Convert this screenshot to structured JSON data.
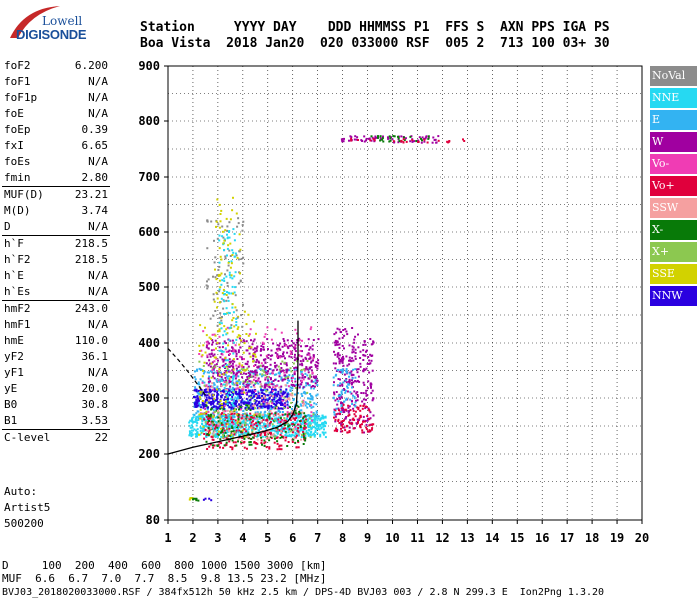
{
  "logo": {
    "brand": "Lowell",
    "product": "DIGISONDE"
  },
  "header": {
    "line1": "Station     YYYY DAY    DDD HHMMSS P1  FFS S  AXN PPS IGA PS",
    "line2": "Boa Vista  2018 Jan20  020 033000 RSF  005 2  713 100 03+ 30"
  },
  "params": [
    {
      "label": "foF2",
      "value": "6.200"
    },
    {
      "label": "foF1",
      "value": "N/A"
    },
    {
      "label": "foF1p",
      "value": "N/A"
    },
    {
      "label": "foE",
      "value": "N/A"
    },
    {
      "label": "foEp",
      "value": "0.39"
    },
    {
      "label": "fxI",
      "value": "6.65"
    },
    {
      "label": "foEs",
      "value": "N/A"
    },
    {
      "label": "fmin",
      "value": "2.80"
    },
    {
      "label": "MUF(D)",
      "value": "23.21",
      "sep": true
    },
    {
      "label": "M(D)",
      "value": "3.74"
    },
    {
      "label": "D",
      "value": "N/A"
    },
    {
      "label": "h`F",
      "value": "218.5",
      "sep": true
    },
    {
      "label": "h`F2",
      "value": "218.5"
    },
    {
      "label": "h`E",
      "value": "N/A"
    },
    {
      "label": "h`Es",
      "value": "N/A"
    },
    {
      "label": "hmF2",
      "value": "243.0",
      "sep": true
    },
    {
      "label": "hmF1",
      "value": "N/A"
    },
    {
      "label": "hmE",
      "value": "110.0"
    },
    {
      "label": "yF2",
      "value": "36.1"
    },
    {
      "label": "yF1",
      "value": "N/A"
    },
    {
      "label": "yE",
      "value": "20.0"
    },
    {
      "label": "B0",
      "value": "30.8"
    },
    {
      "label": "B1",
      "value": "3.53"
    },
    {
      "label": "C-level",
      "value": "22",
      "sep": true
    }
  ],
  "auto": {
    "line1": "Auto:",
    "line2": "Artist5",
    "line3": "500200"
  },
  "legend": [
    {
      "label": "NoVal",
      "color": "#8c8c8c"
    },
    {
      "label": "NNE",
      "color": "#26d9f2"
    },
    {
      "label": "E",
      "color": "#33b3f2"
    },
    {
      "label": "W",
      "color": "#a000a0"
    },
    {
      "label": "Vo-",
      "color": "#f03cb4"
    },
    {
      "label": "Vo+",
      "color": "#e0003c"
    },
    {
      "label": "SSW",
      "color": "#f5a0a0"
    },
    {
      "label": "X-",
      "color": "#087a08"
    },
    {
      "label": "X+",
      "color": "#8cc850"
    },
    {
      "label": "SSE",
      "color": "#d2d200"
    },
    {
      "label": "NNW",
      "color": "#2a00e0"
    }
  ],
  "footer": {
    "row1": "D     100  200  400  600  800 1000 1500 3000 [km]",
    "row2": "MUF  6.6  6.7  7.0  7.7  8.5  9.8 13.5 23.2 [MHz]",
    "row3": "BVJ03_2018020033000.RSF / 384fx512h 50 kHz 2.5 km / DPS-4D BVJ03 003 / 2.8 N 299.3 E  Ion2Png 1.3.20"
  },
  "chart_data": {
    "type": "scatter",
    "xlim": [
      1,
      20
    ],
    "ylim": [
      80,
      900
    ],
    "xticks": [
      "1",
      "2",
      "3",
      "4",
      "5",
      "6",
      "7",
      "8",
      "9",
      "10",
      "11",
      "12",
      "13",
      "14",
      "15",
      "16",
      "17",
      "18",
      "19",
      "20"
    ],
    "yticks": [
      "80",
      "200",
      "300",
      "400",
      "500",
      "600",
      "700",
      "800",
      "900"
    ],
    "grid": true,
    "clusters": [
      {
        "color": "#26d9f2",
        "x": [
          1.8,
          7.3
        ],
        "y": [
          232,
          272
        ],
        "n": 700
      },
      {
        "color": "#33b3f2",
        "x": [
          2.0,
          7.0
        ],
        "y": [
          265,
          355
        ],
        "n": 450
      },
      {
        "color": "#2a00e0",
        "x": [
          2.0,
          5.8
        ],
        "y": [
          282,
          318
        ],
        "n": 420
      },
      {
        "color": "#a000a0",
        "x": [
          2.5,
          7.0
        ],
        "y": [
          320,
          410
        ],
        "n": 450
      },
      {
        "color": "#e0003c",
        "x": [
          2.4,
          6.5
        ],
        "y": [
          210,
          275
        ],
        "n": 260
      },
      {
        "color": "#f03cb4",
        "x": [
          2.2,
          6.8
        ],
        "y": [
          250,
          430
        ],
        "n": 150
      },
      {
        "color": "#087a08",
        "x": [
          2.5,
          6.5
        ],
        "y": [
          215,
          290
        ],
        "n": 150
      },
      {
        "color": "#8cc850",
        "x": [
          2.2,
          6.8
        ],
        "y": [
          230,
          370
        ],
        "n": 120
      },
      {
        "color": "#d2d200",
        "x": [
          2.2,
          4.5
        ],
        "y": [
          230,
          460
        ],
        "n": 120
      },
      {
        "color": "#f5a0a0",
        "x": [
          2.5,
          6.5
        ],
        "y": [
          225,
          330
        ],
        "n": 100
      },
      {
        "color": "#8c8c8c",
        "x": [
          2.5,
          4.0
        ],
        "y": [
          430,
          640
        ],
        "n": 80
      },
      {
        "color": "#a000a0",
        "x": [
          7.6,
          9.2
        ],
        "y": [
          240,
          430
        ],
        "n": 260
      },
      {
        "color": "#e0003c",
        "x": [
          7.6,
          9.2
        ],
        "y": [
          240,
          290
        ],
        "n": 90
      },
      {
        "color": "#33b3f2",
        "x": [
          7.6,
          8.5
        ],
        "y": [
          270,
          360
        ],
        "n": 60
      },
      {
        "color": "#26d9f2",
        "x": [
          3.0,
          3.7
        ],
        "y": [
          250,
          610
        ],
        "n": 120
      },
      {
        "color": "#d2d200",
        "x": [
          2.8,
          3.9
        ],
        "y": [
          460,
          680
        ],
        "n": 50
      },
      {
        "color": "#a000a0",
        "x": [
          7.9,
          11.8
        ],
        "y": [
          763,
          775
        ],
        "n": 70
      },
      {
        "color": "#087a08",
        "x": [
          9.0,
          11.5
        ],
        "y": [
          765,
          775
        ],
        "n": 25
      },
      {
        "color": "#e0003c",
        "x": [
          7.9,
          12.9
        ],
        "y": [
          763,
          770
        ],
        "n": 25
      },
      {
        "color": "#d2d200",
        "x": [
          1.8,
          2.1
        ],
        "y": [
          118,
          122
        ],
        "n": 6
      },
      {
        "color": "#087a08",
        "x": [
          1.9,
          2.2
        ],
        "y": [
          117,
          121
        ],
        "n": 6
      },
      {
        "color": "#2a00e0",
        "x": [
          2.4,
          2.7
        ],
        "y": [
          117,
          121
        ],
        "n": 4
      }
    ],
    "profile_curve": {
      "color": "#000000",
      "points": [
        [
          1.0,
          200
        ],
        [
          2.0,
          212
        ],
        [
          3.0,
          222
        ],
        [
          4.0,
          232
        ],
        [
          4.8,
          240
        ],
        [
          5.4,
          248
        ],
        [
          5.8,
          258
        ],
        [
          6.0,
          270
        ],
        [
          6.15,
          290
        ],
        [
          6.2,
          330
        ],
        [
          6.21,
          380
        ],
        [
          6.21,
          440
        ]
      ]
    },
    "profile_dashed": {
      "color": "#000000",
      "points": [
        [
          1.0,
          390
        ],
        [
          1.4,
          370
        ],
        [
          1.8,
          348
        ],
        [
          2.1,
          330
        ],
        [
          2.3,
          318
        ],
        [
          2.5,
          305
        ]
      ]
    }
  }
}
